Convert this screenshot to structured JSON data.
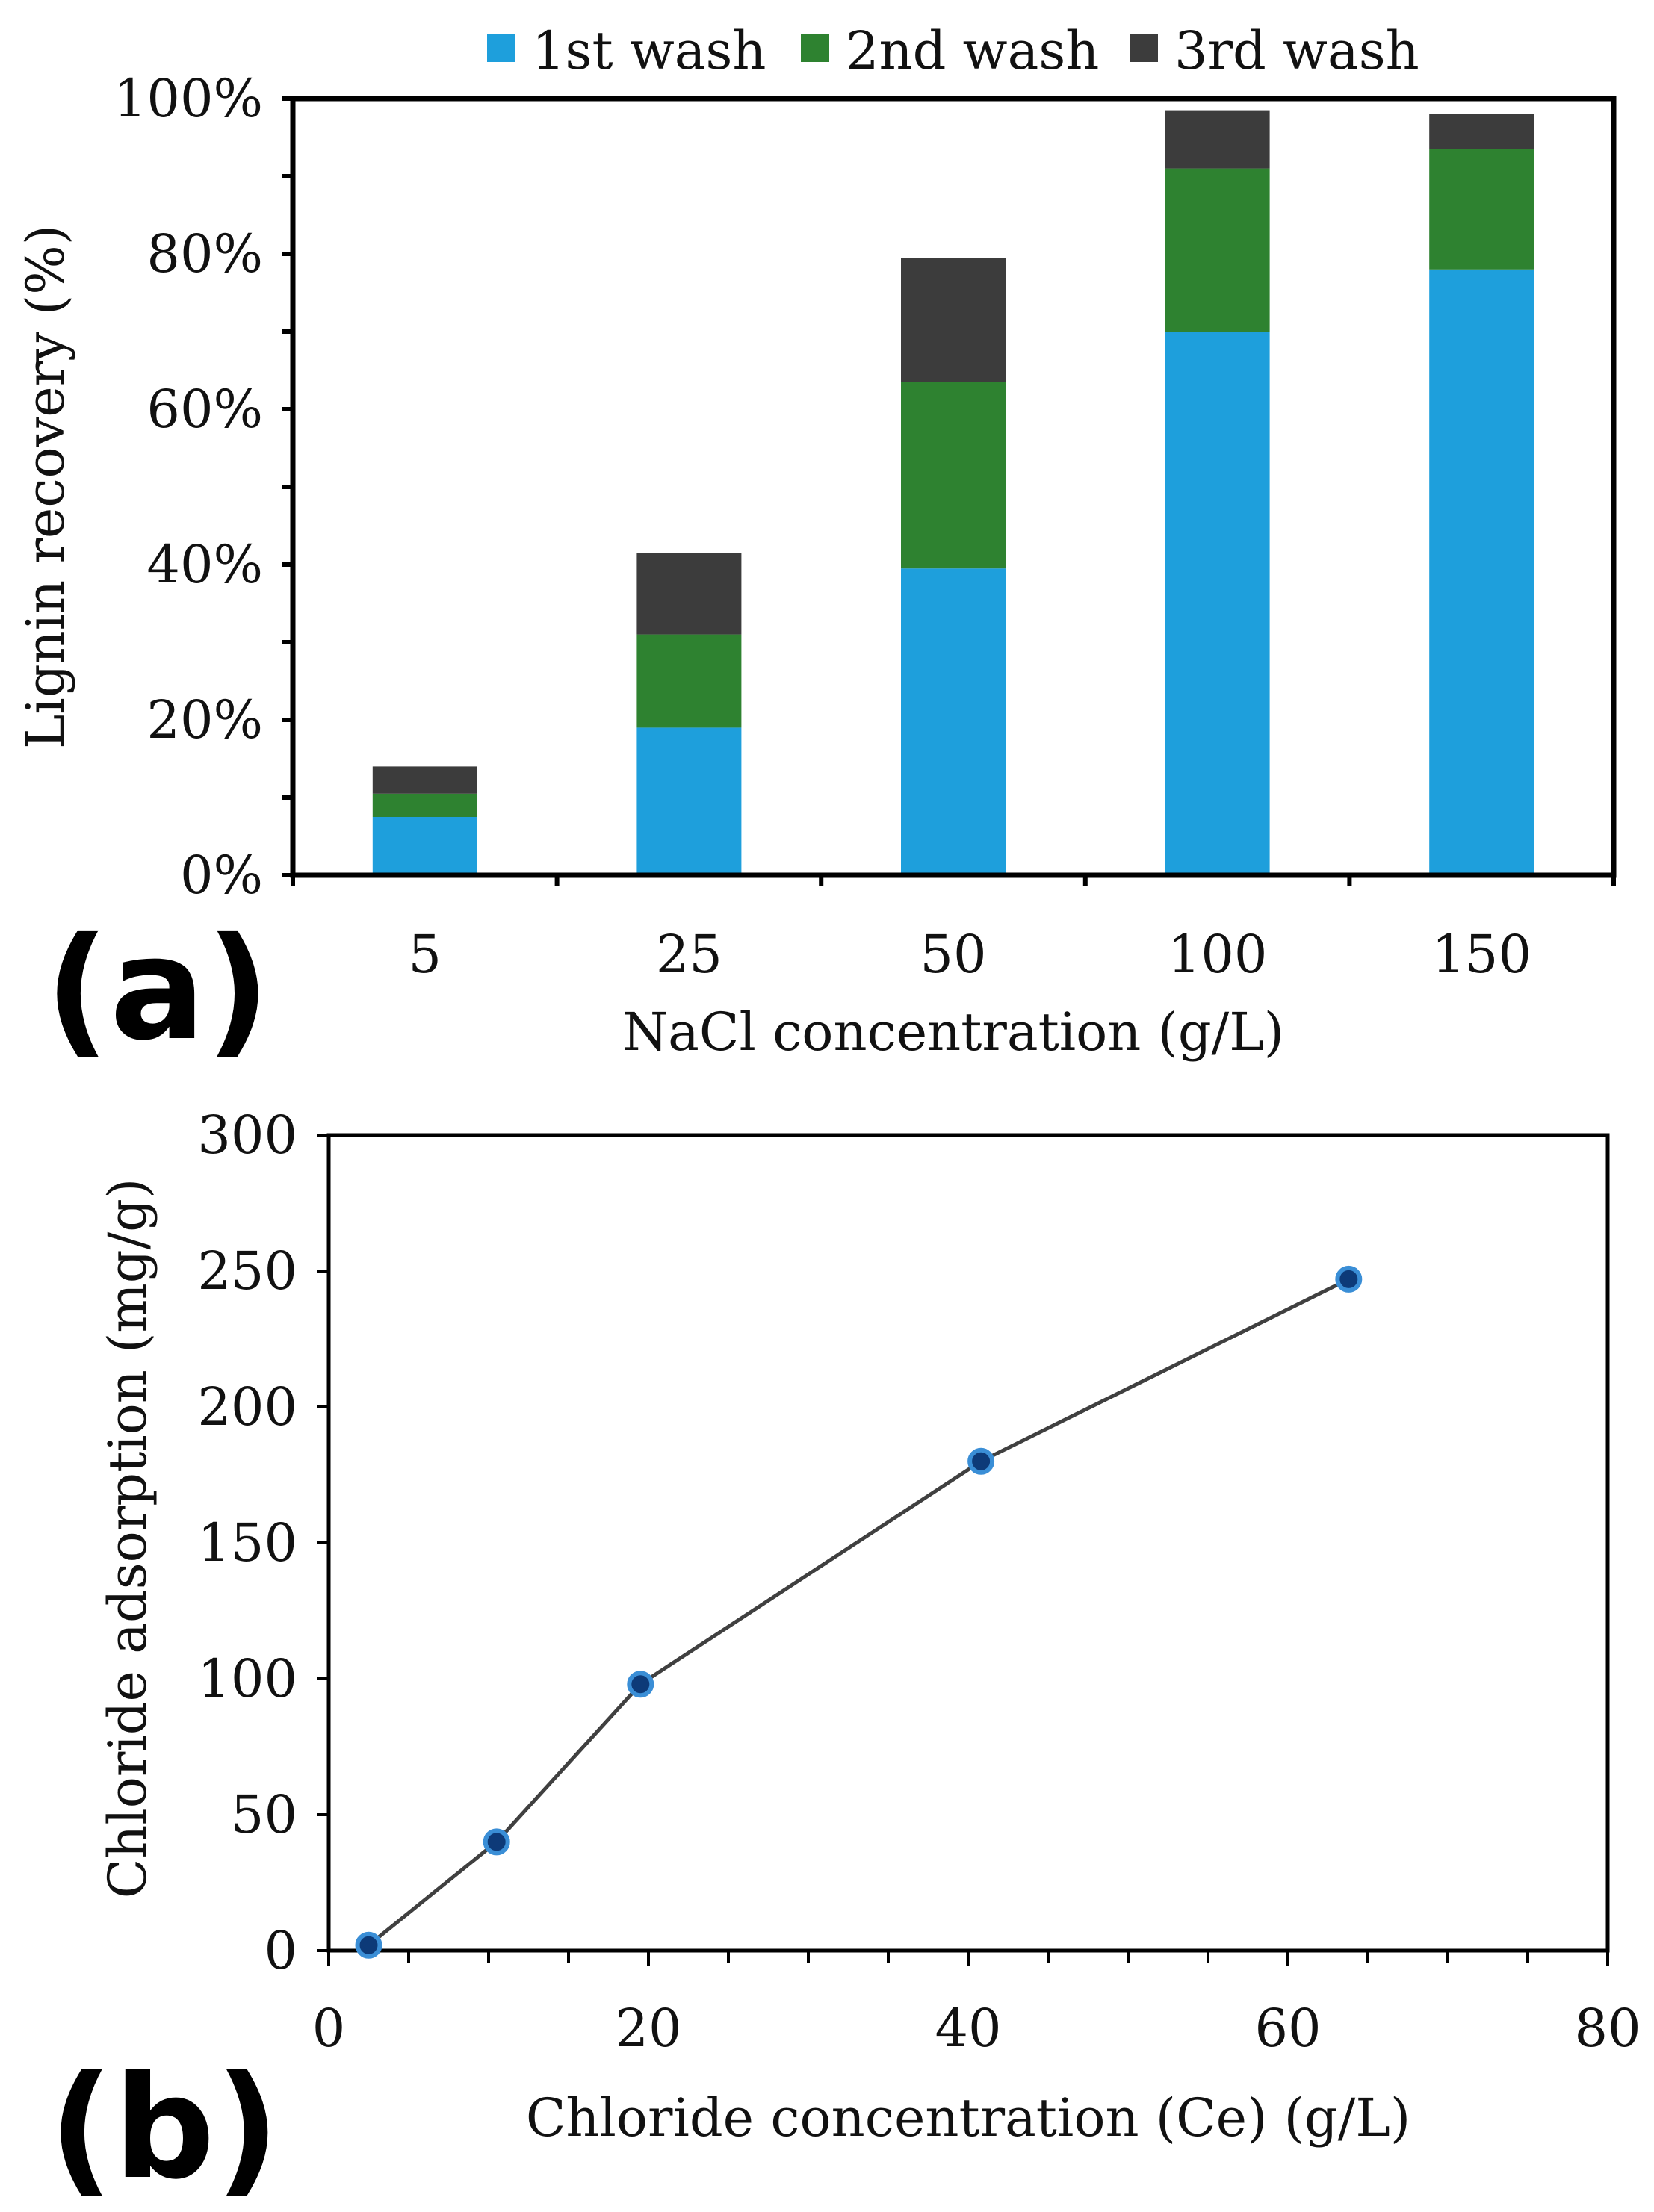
{
  "colors": {
    "first_wash": "#1e9fdc",
    "second_wash": "#2e8230",
    "third_wash": "#3c3c3c",
    "marker_fill": "#0d3a78",
    "marker_ring": "#3a8ed6",
    "line": "#404040",
    "axis": "#000000"
  },
  "chart_data": [
    {
      "panel_label": "(a)",
      "type": "bar",
      "stacked": true,
      "categories": [
        "5",
        "25",
        "50",
        "100",
        "150"
      ],
      "series": [
        {
          "name": "1st wash",
          "values": [
            7.5,
            19,
            39.5,
            70,
            78
          ]
        },
        {
          "name": "2nd wash",
          "values": [
            3,
            12,
            24,
            21,
            15.5
          ]
        },
        {
          "name": "3rd wash",
          "values": [
            3.5,
            10.5,
            16,
            7.5,
            4.5
          ]
        }
      ],
      "xlabel": "NaCl concentration (g/L)",
      "ylabel": "Lignin recovery (%)",
      "ylim": [
        0,
        100
      ],
      "yticks": [
        "0%",
        "20%",
        "40%",
        "60%",
        "80%",
        "100%"
      ],
      "legend": "top"
    },
    {
      "panel_label": "(b)",
      "type": "line",
      "markers": true,
      "x": [
        2.5,
        10.5,
        19.5,
        40.8,
        63.8
      ],
      "y": [
        2,
        40,
        98,
        180,
        247
      ],
      "xlabel": "Chloride concentration (Ce) (g/L)",
      "ylabel": "Chloride adsorption (mg/g)",
      "xlim": [
        0,
        80
      ],
      "ylim": [
        0,
        300
      ],
      "xticks": [
        "0",
        "20",
        "40",
        "60",
        "80"
      ],
      "yticks": [
        "0",
        "50",
        "100",
        "150",
        "200",
        "250",
        "300"
      ]
    }
  ]
}
